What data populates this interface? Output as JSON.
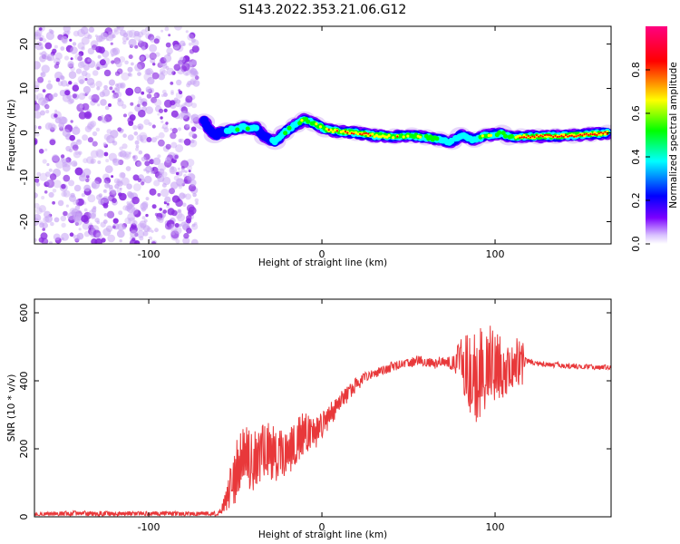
{
  "figure_title": "S143.2022.353.21.06.G12",
  "chart_data": [
    {
      "type": "heatmap",
      "title": "",
      "xlabel": "Height of straight line (km)",
      "ylabel": "Frequency (Hz)",
      "xlim": [
        -166,
        167
      ],
      "ylim": [
        -25,
        24
      ],
      "xticks": [
        -100,
        0,
        100
      ],
      "yticks": [
        -20,
        -10,
        0,
        10,
        20
      ],
      "colorbar": {
        "label": "Normalized spectral amplitude",
        "range": [
          0,
          1
        ],
        "ticks": [
          0.0,
          0.2,
          0.4,
          0.6,
          0.8
        ],
        "tick_labels": [
          "0.0",
          "0.2",
          "0.4",
          "0.6",
          "0.8"
        ],
        "colormap": [
          "#ffffff",
          "#7b00ff",
          "#0000ff",
          "#00ffff",
          "#00ff00",
          "#ffff00",
          "#ff0000",
          "#ff0080"
        ]
      },
      "noise_region_x": [
        -166,
        -72
      ],
      "signal_track": [
        {
          "x": -68,
          "y": 2.5,
          "amp": 0.35
        },
        {
          "x": -62,
          "y": -0.5,
          "amp": 0.4
        },
        {
          "x": -55,
          "y": 0.5,
          "amp": 0.5
        },
        {
          "x": -45,
          "y": 1.2,
          "amp": 0.55
        },
        {
          "x": -38,
          "y": 1.0,
          "amp": 0.5
        },
        {
          "x": -33,
          "y": -1.0,
          "amp": 0.45
        },
        {
          "x": -27,
          "y": -2.0,
          "amp": 0.5
        },
        {
          "x": -22,
          "y": 0.0,
          "amp": 0.55
        },
        {
          "x": -15,
          "y": 1.8,
          "amp": 0.6
        },
        {
          "x": -10,
          "y": 3.0,
          "amp": 0.65
        },
        {
          "x": -4,
          "y": 2.0,
          "amp": 0.7
        },
        {
          "x": 2,
          "y": 0.8,
          "amp": 0.75
        },
        {
          "x": 10,
          "y": 0.3,
          "amp": 0.8
        },
        {
          "x": 20,
          "y": 0.0,
          "amp": 0.85
        },
        {
          "x": 30,
          "y": -0.6,
          "amp": 0.8
        },
        {
          "x": 42,
          "y": -0.8,
          "amp": 0.75
        },
        {
          "x": 52,
          "y": -0.6,
          "amp": 0.7
        },
        {
          "x": 60,
          "y": -1.0,
          "amp": 0.65
        },
        {
          "x": 68,
          "y": -1.5,
          "amp": 0.6
        },
        {
          "x": 75,
          "y": -2.0,
          "amp": 0.5
        },
        {
          "x": 80,
          "y": -0.5,
          "amp": 0.55
        },
        {
          "x": 88,
          "y": -1.5,
          "amp": 0.5
        },
        {
          "x": 95,
          "y": -0.6,
          "amp": 0.7
        },
        {
          "x": 104,
          "y": 0.0,
          "amp": 0.55
        },
        {
          "x": 108,
          "y": -1.0,
          "amp": 0.5
        },
        {
          "x": 115,
          "y": -0.8,
          "amp": 0.88
        },
        {
          "x": 125,
          "y": -0.8,
          "amp": 0.92
        },
        {
          "x": 135,
          "y": -0.7,
          "amp": 0.95
        },
        {
          "x": 145,
          "y": -0.6,
          "amp": 0.95
        },
        {
          "x": 155,
          "y": -0.3,
          "amp": 0.9
        },
        {
          "x": 165,
          "y": 0.0,
          "amp": 0.95
        }
      ]
    },
    {
      "type": "line",
      "title": "",
      "xlabel": "Height of straight line (km)",
      "ylabel": "SNR (10 * v/v)",
      "xlim": [
        -166,
        167
      ],
      "ylim": [
        0,
        640
      ],
      "xticks": [
        -100,
        0,
        100
      ],
      "yticks": [
        0,
        200,
        400,
        600
      ],
      "color": "#e8383a",
      "series": [
        {
          "x": [
            -166,
            -140,
            -120,
            -100,
            -80,
            -60,
            -56,
            -50,
            -45,
            -40,
            -35,
            -30,
            -25,
            -20,
            -15,
            -10,
            -5,
            0,
            5,
            10,
            15,
            20,
            25,
            30,
            35,
            40,
            45,
            50,
            55,
            60,
            65,
            70,
            75,
            80,
            85,
            90,
            95,
            100,
            105,
            110,
            115,
            118,
            125,
            140,
            155,
            167
          ],
          "y": [
            8,
            10,
            9,
            10,
            9,
            10,
            40,
            130,
            170,
            160,
            190,
            200,
            180,
            190,
            220,
            250,
            240,
            270,
            300,
            340,
            360,
            390,
            410,
            420,
            430,
            440,
            450,
            450,
            460,
            455,
            450,
            460,
            450,
            460,
            430,
            420,
            440,
            450,
            430,
            440,
            450,
            460,
            450,
            445,
            440,
            440
          ],
          "spread": [
            5,
            8,
            7,
            7,
            7,
            7,
            25,
            90,
            100,
            100,
            90,
            90,
            80,
            70,
            70,
            60,
            50,
            40,
            35,
            30,
            25,
            20,
            18,
            15,
            15,
            15,
            15,
            15,
            15,
            15,
            15,
            15,
            20,
            60,
            120,
            150,
            140,
            110,
            80,
            60,
            100,
            10,
            8,
            8,
            8,
            8
          ]
        }
      ]
    }
  ]
}
